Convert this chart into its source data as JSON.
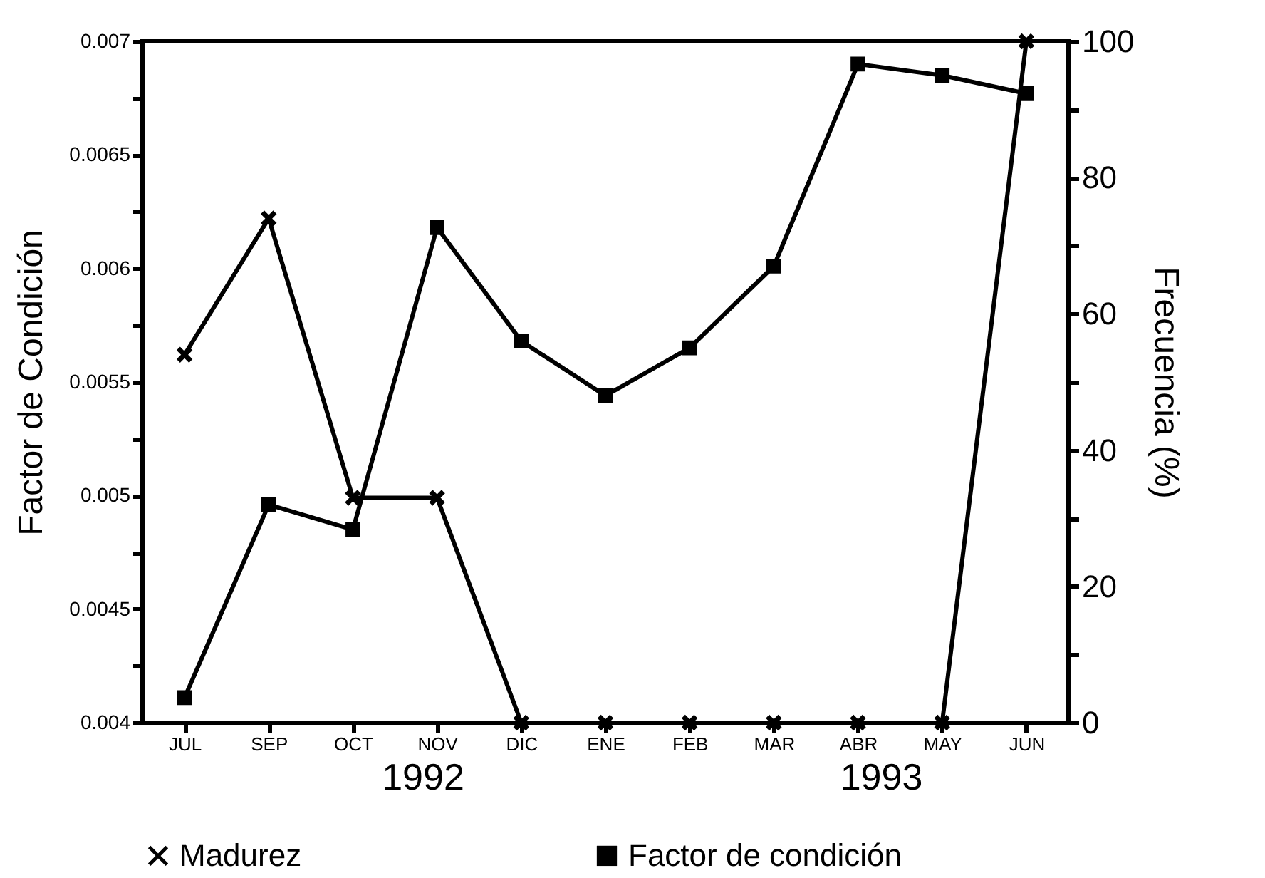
{
  "chart_data": {
    "type": "line",
    "ylabel": "Factor de Condición",
    "y2label": "Frecuencia (%)",
    "categories": [
      "JUL",
      "SEP",
      "OCT",
      "NOV",
      "DIC",
      "ENE",
      "FEB",
      "MAR",
      "ABR",
      "MAY",
      "JUN"
    ],
    "series": [
      {
        "name": "Madurez",
        "color": "#000000",
        "axis": "y2",
        "marker": "cross",
        "values": [
          54,
          74,
          33,
          33,
          0,
          0,
          0,
          0,
          0,
          0,
          100
        ]
      },
      {
        "name": "Factor de condición",
        "color": "#000000",
        "marker": "square",
        "values": [
          0.00411,
          0.00496,
          0.00485,
          0.00618,
          0.00568,
          0.00544,
          0.00565,
          0.00601,
          0.0069,
          0.00685,
          0.00677
        ]
      }
    ],
    "ylim": [
      0.004,
      0.007
    ],
    "yticks": [
      0.004,
      {
        "value": 0.00425,
        "label": null
      },
      0.0045,
      {
        "value": 0.00475,
        "label": null
      },
      0.005,
      {
        "value": 0.00525,
        "label": null
      },
      0.0055,
      {
        "value": 0.00575,
        "label": null
      },
      0.006,
      {
        "value": 0.00625,
        "label": null
      },
      0.0065,
      {
        "value": 0.00675,
        "label": null
      },
      0.007
    ],
    "y2lim": [
      0,
      100
    ],
    "y2ticks": [
      0,
      {
        "value": 10,
        "label": null
      },
      20,
      {
        "value": 30,
        "label": null
      },
      40,
      {
        "value": 50,
        "label": null
      },
      60,
      {
        "value": 70,
        "label": null
      },
      80,
      {
        "value": 90,
        "label": null
      },
      100
    ],
    "annotations": [
      "1992",
      "1993"
    ],
    "legend": "bottom",
    "grid": false
  }
}
